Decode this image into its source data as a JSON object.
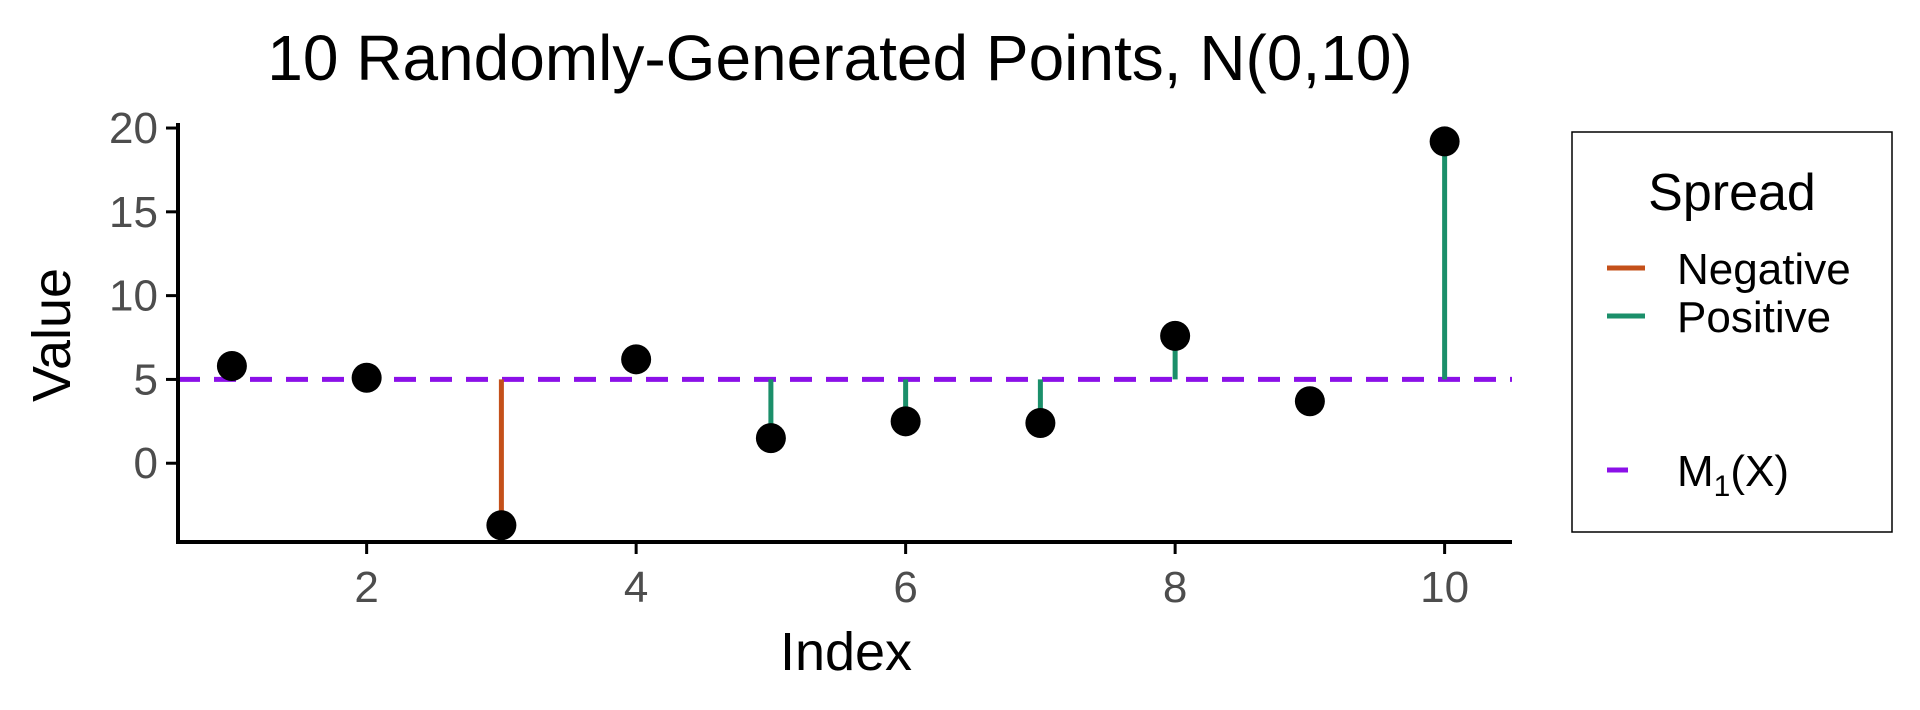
{
  "chart_data": {
    "type": "scatter",
    "title": "10 Randomly-Generated Points, N(0,10)",
    "xlabel": "Index",
    "ylabel": "Value",
    "xlim": [
      0.6,
      10.5
    ],
    "ylim": [
      -4.7,
      20.3
    ],
    "x_ticks": [
      2,
      4,
      6,
      8,
      10
    ],
    "y_ticks": [
      0,
      5,
      10,
      15,
      20
    ],
    "x": [
      1,
      2,
      3,
      4,
      5,
      6,
      7,
      8,
      9,
      10
    ],
    "values": [
      5.8,
      5.1,
      -3.7,
      6.2,
      1.5,
      2.5,
      2.4,
      7.6,
      3.7,
      19.2
    ],
    "mean_line": {
      "value": 5.0,
      "label_main": "M",
      "label_sub": "1",
      "label_tail": "(X)",
      "color": "#8b10e8"
    },
    "spread_segments": [
      {
        "x": 3,
        "from": 5.0,
        "to": -3.7,
        "type": "Negative"
      },
      {
        "x": 5,
        "from": 5.0,
        "to": 1.5,
        "type": "Positive"
      },
      {
        "x": 6,
        "from": 5.0,
        "to": 2.5,
        "type": "Positive"
      },
      {
        "x": 7,
        "from": 5.0,
        "to": 2.4,
        "type": "Positive"
      },
      {
        "x": 8,
        "from": 5.0,
        "to": 7.6,
        "type": "Positive"
      },
      {
        "x": 10,
        "from": 5.0,
        "to": 19.2,
        "type": "Positive"
      }
    ],
    "legend": {
      "title": "Spread",
      "position": "right",
      "entries": [
        {
          "label": "Negative",
          "color": "#c4501a"
        },
        {
          "label": "Positive",
          "color": "#1b8f6a"
        }
      ]
    },
    "point_color": "#000000",
    "grid": false
  }
}
